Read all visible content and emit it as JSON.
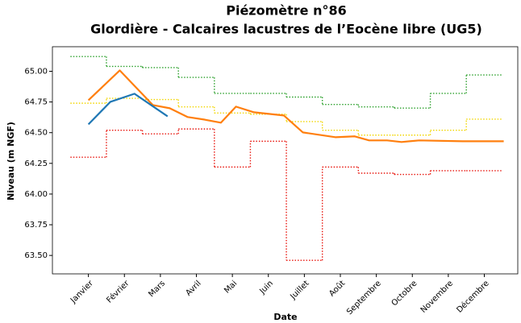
{
  "chart_data": {
    "type": "line",
    "title": "Piézomètre n°86",
    "subtitle": "Glordière - Calcaires lacustres de l’Eocène libre (UG5)",
    "xlabel": "Date",
    "ylabel": "Niveau (m NGF)",
    "xlim": [
      0,
      12.93
    ],
    "xticks": [
      {
        "value": 1,
        "label": "Janvier"
      },
      {
        "value": 2,
        "label": "Février"
      },
      {
        "value": 3,
        "label": "Mars"
      },
      {
        "value": 4,
        "label": "Avril"
      },
      {
        "value": 5,
        "label": "Mai"
      },
      {
        "value": 6,
        "label": "Juin"
      },
      {
        "value": 7,
        "label": "Juillet"
      },
      {
        "value": 8,
        "label": "Août"
      },
      {
        "value": 9,
        "label": "Septembre"
      },
      {
        "value": 10,
        "label": "Octobre"
      },
      {
        "value": 11,
        "label": "Novembre"
      },
      {
        "value": 12,
        "label": "Décembre"
      }
    ],
    "ylim": [
      63.35,
      65.2
    ],
    "yticks": [
      {
        "value": 63.5,
        "label": "63.50"
      },
      {
        "value": 63.75,
        "label": "63.75"
      },
      {
        "value": 64,
        "label": "64.00"
      },
      {
        "value": 64.25,
        "label": "64.25"
      },
      {
        "value": 64.5,
        "label": "64.50"
      },
      {
        "value": 64.75,
        "label": "64.75"
      },
      {
        "value": 65,
        "label": "65.00"
      }
    ],
    "grid": false,
    "series": [
      {
        "color": "#2ca02c",
        "style": "dotted",
        "drawstyle": "steps-mid",
        "x": [
          1,
          2,
          3,
          4,
          5,
          6,
          7,
          8,
          9,
          10,
          11,
          12
        ],
        "values": [
          65.12,
          65.04,
          65.03,
          64.95,
          64.82,
          64.82,
          64.79,
          64.73,
          64.71,
          64.7,
          64.82,
          64.97
        ]
      },
      {
        "color": "#f2d600",
        "style": "dotted",
        "drawstyle": "steps-mid",
        "x": [
          1,
          2,
          3,
          4,
          5,
          6,
          7,
          8,
          9,
          10,
          11,
          12
        ],
        "values": [
          64.74,
          64.78,
          64.77,
          64.71,
          64.66,
          64.65,
          64.59,
          64.52,
          64.48,
          64.48,
          64.52,
          64.61
        ]
      },
      {
        "color": "#e8160e",
        "style": "dotted",
        "drawstyle": "steps-mid",
        "x": [
          1,
          2,
          3,
          4,
          5,
          6,
          7,
          8,
          9,
          10,
          11,
          12
        ],
        "values": [
          64.3,
          64.52,
          64.49,
          64.53,
          64.22,
          64.43,
          63.46,
          64.22,
          64.17,
          64.16,
          64.19,
          64.19
        ]
      },
      {
        "color": "#ff7f0e",
        "style": "solid",
        "drawstyle": "default",
        "x": [
          1.0,
          1.87,
          2.79,
          3.26,
          3.76,
          4.21,
          4.68,
          5.1,
          5.6,
          6.43,
          6.96,
          7.86,
          8.4,
          8.8,
          9.3,
          9.7,
          10.19,
          11.4,
          12.54
        ],
        "values": [
          64.764,
          65.007,
          64.725,
          64.699,
          64.627,
          64.607,
          64.581,
          64.712,
          64.666,
          64.64,
          64.502,
          64.463,
          64.47,
          64.437,
          64.437,
          64.424,
          64.437,
          64.43,
          64.43
        ]
      },
      {
        "color": "#1f77b4",
        "style": "solid",
        "drawstyle": "default",
        "x": [
          1.0,
          1.61,
          2.28,
          3.2
        ],
        "values": [
          64.568,
          64.751,
          64.817,
          64.633
        ]
      }
    ]
  }
}
